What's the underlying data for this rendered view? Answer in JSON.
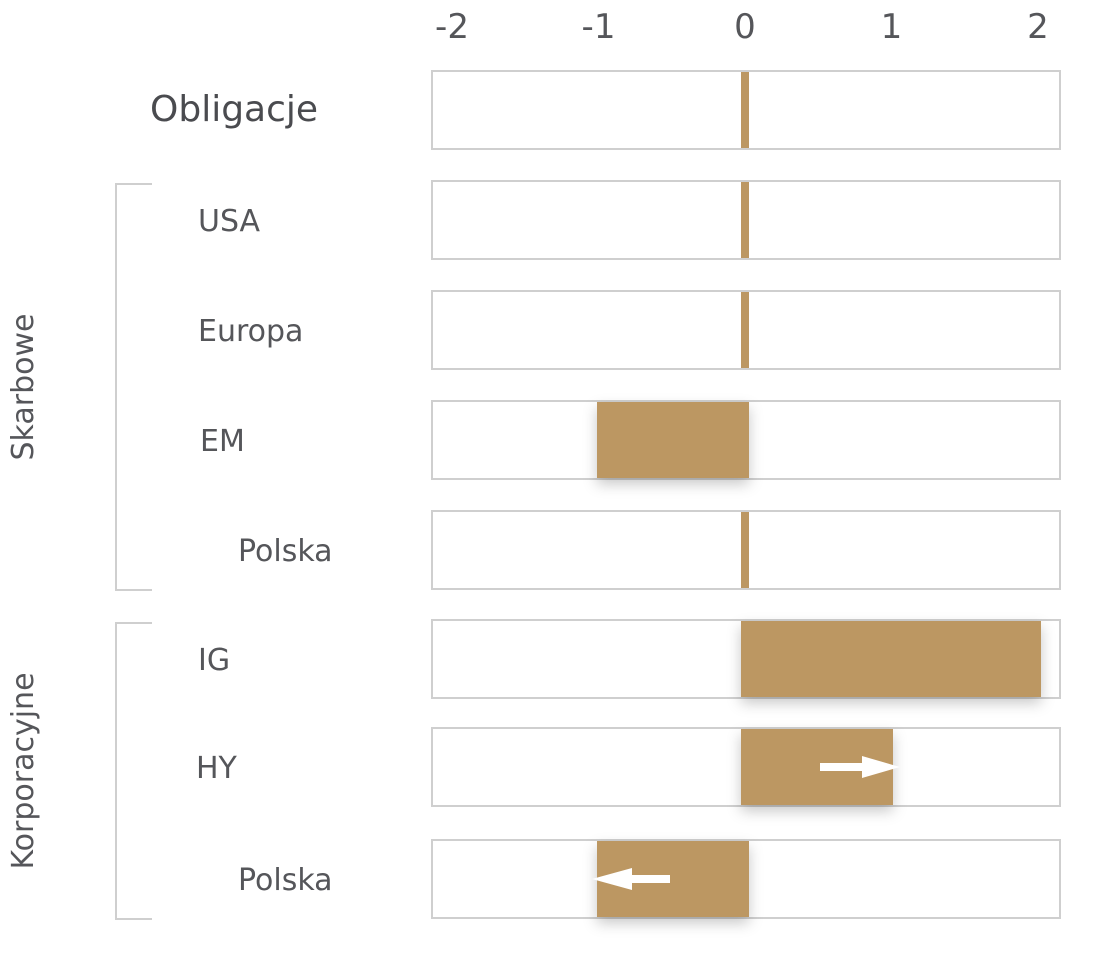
{
  "chart_data": {
    "type": "bar",
    "orientation": "horizontal",
    "xlim": [
      -2,
      2
    ],
    "x_ticks": [
      "-2",
      "-1",
      "0",
      "1",
      "2"
    ],
    "bar_color": "#bc9762",
    "categories": [
      "Obligacje",
      "USA",
      "Europa",
      "EM",
      "Polska",
      "IG",
      "HY",
      "Polska"
    ],
    "values": [
      0,
      0,
      0,
      -1,
      0,
      2,
      1,
      -1
    ],
    "groups": [
      {
        "label": "Skarbowe",
        "from": 1,
        "to": 4
      },
      {
        "label": "Korporacyjne",
        "from": 5,
        "to": 7
      }
    ],
    "arrows": [
      {
        "category_index": 6,
        "direction": "right"
      },
      {
        "category_index": 7,
        "direction": "left"
      }
    ]
  }
}
